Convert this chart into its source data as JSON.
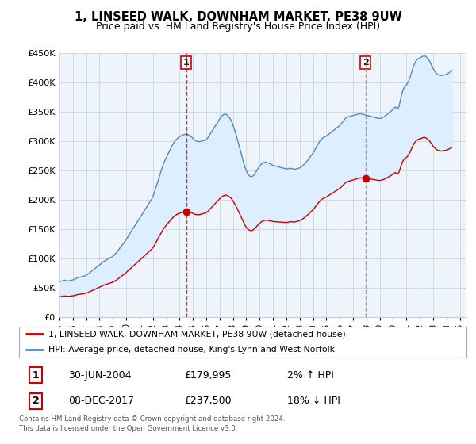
{
  "title": "1, LINSEED WALK, DOWNHAM MARKET, PE38 9UW",
  "subtitle": "Price paid vs. HM Land Registry's House Price Index (HPI)",
  "ylim": [
    0,
    450000
  ],
  "yticks": [
    0,
    50000,
    100000,
    150000,
    200000,
    250000,
    300000,
    350000,
    400000,
    450000
  ],
  "xlim_start": 1995.0,
  "xlim_end": 2025.5,
  "transaction1": {
    "date": 2004.49,
    "price": 179995,
    "label": "1",
    "hpi_diff": "2% ↑ HPI",
    "date_str": "30-JUN-2004"
  },
  "transaction2": {
    "date": 2017.92,
    "price": 237500,
    "label": "2",
    "hpi_diff": "18% ↓ HPI",
    "date_str": "08-DEC-2017"
  },
  "legend_line1": "1, LINSEED WALK, DOWNHAM MARKET, PE38 9UW (detached house)",
  "legend_line2": "HPI: Average price, detached house, King's Lynn and West Norfolk",
  "footer1": "Contains HM Land Registry data © Crown copyright and database right 2024.",
  "footer2": "This data is licensed under the Open Government Licence v3.0.",
  "red_color": "#cc0000",
  "blue_color": "#5588bb",
  "fill_color": "#ddeeff",
  "background_color": "#ffffff",
  "grid_color": "#cccccc",
  "xtick_years": [
    1995,
    1996,
    1997,
    1998,
    1999,
    2000,
    2001,
    2002,
    2003,
    2004,
    2005,
    2006,
    2007,
    2008,
    2009,
    2010,
    2011,
    2012,
    2013,
    2014,
    2015,
    2016,
    2017,
    2018,
    2019,
    2020,
    2021,
    2022,
    2023,
    2024,
    2025
  ]
}
